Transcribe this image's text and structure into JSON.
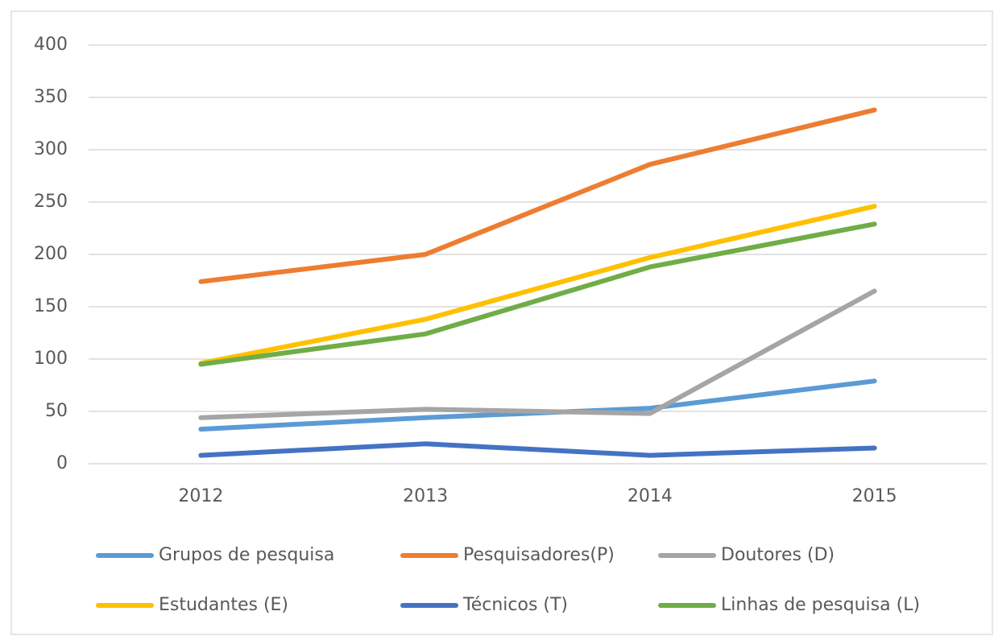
{
  "chart_data": {
    "type": "line",
    "categories": [
      "2012",
      "2013",
      "2014",
      "2015"
    ],
    "series": [
      {
        "name": "Grupos de pesquisa",
        "color": "#5b9bd5",
        "values": [
          33,
          44,
          53,
          79
        ]
      },
      {
        "name": "Pesquisadores(P)",
        "color": "#ed7d31",
        "values": [
          174,
          200,
          286,
          338
        ]
      },
      {
        "name": "Doutores (D)",
        "color": "#a5a5a5",
        "values": [
          44,
          52,
          48,
          165
        ]
      },
      {
        "name": "Estudantes (E)",
        "color": "#ffc000",
        "values": [
          96,
          138,
          197,
          246
        ]
      },
      {
        "name": "Técnicos (T)",
        "color": "#4472c4",
        "values": [
          8,
          19,
          8,
          15
        ]
      },
      {
        "name": "Linhas de pesquisa (L)",
        "color": "#70ad47",
        "values": [
          95,
          124,
          188,
          229
        ]
      }
    ],
    "ylim": [
      0,
      400
    ],
    "yticks": [
      0,
      50,
      100,
      150,
      200,
      250,
      300,
      350,
      400
    ],
    "grid": true,
    "legend": "bottom"
  }
}
